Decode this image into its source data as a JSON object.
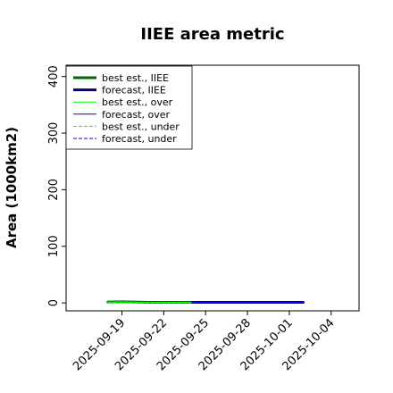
{
  "chart_data": {
    "type": "line",
    "title": "IIEE area metric",
    "xlabel": "",
    "ylabel": "Area (1000km2)",
    "ylim": [
      -14,
      420
    ],
    "xlim": [
      "2025-09-15",
      "2025-10-06"
    ],
    "yticks": [
      0,
      100,
      200,
      300,
      400
    ],
    "xticks": [
      "2025-09-19",
      "2025-09-22",
      "2025-09-25",
      "2025-09-28",
      "2025-10-01",
      "2025-10-04"
    ],
    "highlight_xtick": "2025-09-25",
    "highlight_color": "#228b22",
    "legend_position": "upper-left",
    "grid": false,
    "series": [
      {
        "name": "best est., IIEE",
        "color": "#006400",
        "dash": "solid",
        "width": 3,
        "x": [
          "2025-09-18",
          "2025-09-19",
          "2025-09-21",
          "2025-09-24"
        ],
        "y": [
          1.5,
          2,
          1,
          1
        ]
      },
      {
        "name": "forecast, IIEE",
        "color": "#00008b",
        "dash": "solid",
        "width": 3,
        "x": [
          "2025-09-24",
          "2025-09-25",
          "2025-09-29",
          "2025-10-02"
        ],
        "y": [
          1,
          1,
          1,
          1
        ]
      },
      {
        "name": "best est., over",
        "color": "#00ff00",
        "dash": "solid",
        "width": 1,
        "x": [
          "2025-09-18",
          "2025-09-19",
          "2025-09-21",
          "2025-09-24"
        ],
        "y": [
          1.5,
          2,
          1,
          1
        ]
      },
      {
        "name": "forecast, over",
        "color": "#0000ff",
        "dash": "solid",
        "width": 1,
        "x": [
          "2025-09-24",
          "2025-09-25",
          "2025-09-29",
          "2025-10-02"
        ],
        "y": [
          1,
          1,
          1,
          1
        ]
      },
      {
        "name": "best est., under",
        "color": "#00ff00",
        "dash": "dashed",
        "width": 1,
        "x": [
          "2025-09-18",
          "2025-09-19",
          "2025-09-21",
          "2025-09-24"
        ],
        "y": [
          0,
          0,
          0,
          0
        ]
      },
      {
        "name": "forecast, under",
        "color": "#0000ff",
        "dash": "dashed",
        "width": 1,
        "x": [
          "2025-09-24",
          "2025-09-25",
          "2025-09-29",
          "2025-10-02"
        ],
        "y": [
          0,
          0,
          0,
          0
        ]
      }
    ]
  }
}
